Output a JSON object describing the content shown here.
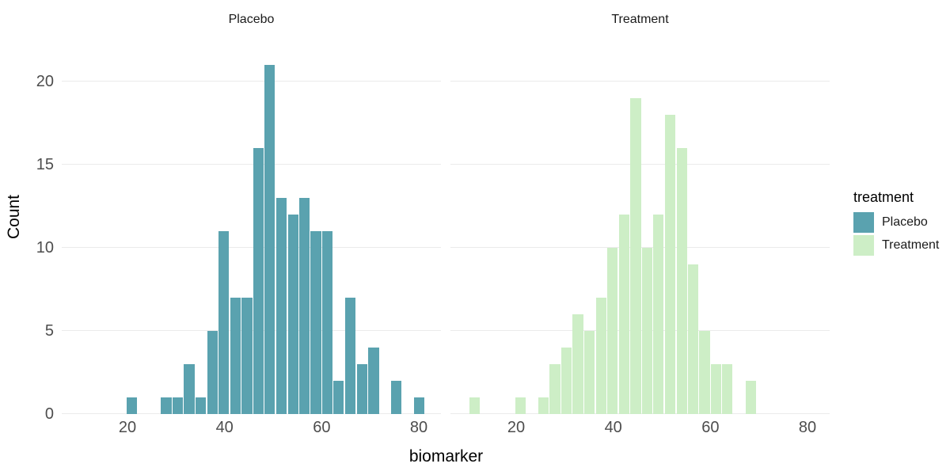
{
  "chart_data": {
    "type": "bar",
    "subtype": "faceted_histogram",
    "title": "",
    "xlabel": "biomarker",
    "ylabel": "Count",
    "x_ticks": [
      20,
      40,
      60,
      80
    ],
    "y_ticks": [
      0,
      5,
      10,
      15,
      20
    ],
    "xlim": [
      6.5,
      84.6
    ],
    "ylim": [
      0,
      22.3
    ],
    "binwidth": 2.37,
    "grid": "horizontal-major-only",
    "legend_position": "right",
    "legend": {
      "title": "treatment",
      "entries": [
        "Placebo",
        "Treatment"
      ]
    },
    "colors": {
      "Placebo": "#5aa2af",
      "Treatment": "#cdeec6"
    },
    "facets": [
      {
        "name": "Placebo",
        "color": "#5aa2af",
        "bins": [
          {
            "x": 20.9,
            "count": 1
          },
          {
            "x": 28.0,
            "count": 1
          },
          {
            "x": 30.4,
            "count": 1
          },
          {
            "x": 32.7,
            "count": 3
          },
          {
            "x": 35.1,
            "count": 1
          },
          {
            "x": 37.5,
            "count": 5
          },
          {
            "x": 39.8,
            "count": 11
          },
          {
            "x": 42.2,
            "count": 7
          },
          {
            "x": 44.6,
            "count": 7
          },
          {
            "x": 47.0,
            "count": 16
          },
          {
            "x": 49.3,
            "count": 21
          },
          {
            "x": 51.7,
            "count": 13
          },
          {
            "x": 54.1,
            "count": 12
          },
          {
            "x": 56.4,
            "count": 13
          },
          {
            "x": 58.8,
            "count": 11
          },
          {
            "x": 61.2,
            "count": 11
          },
          {
            "x": 63.5,
            "count": 2
          },
          {
            "x": 65.9,
            "count": 7
          },
          {
            "x": 68.3,
            "count": 3
          },
          {
            "x": 70.7,
            "count": 4
          },
          {
            "x": 75.4,
            "count": 2
          },
          {
            "x": 80.1,
            "count": 1
          }
        ]
      },
      {
        "name": "Treatment",
        "color": "#cdeec6",
        "bins": [
          {
            "x": 11.4,
            "count": 1
          },
          {
            "x": 20.9,
            "count": 1
          },
          {
            "x": 25.6,
            "count": 1
          },
          {
            "x": 28.0,
            "count": 3
          },
          {
            "x": 30.4,
            "count": 4
          },
          {
            "x": 32.7,
            "count": 6
          },
          {
            "x": 35.1,
            "count": 5
          },
          {
            "x": 37.5,
            "count": 7
          },
          {
            "x": 39.8,
            "count": 10
          },
          {
            "x": 42.2,
            "count": 12
          },
          {
            "x": 44.6,
            "count": 19
          },
          {
            "x": 47.0,
            "count": 10
          },
          {
            "x": 49.3,
            "count": 12
          },
          {
            "x": 51.7,
            "count": 18
          },
          {
            "x": 54.1,
            "count": 16
          },
          {
            "x": 56.4,
            "count": 9
          },
          {
            "x": 58.8,
            "count": 5
          },
          {
            "x": 61.2,
            "count": 3
          },
          {
            "x": 63.5,
            "count": 3
          },
          {
            "x": 68.3,
            "count": 2
          }
        ]
      }
    ]
  },
  "theme": {
    "background": "#ffffff",
    "gridline_color": "#ebebeb",
    "tick_label_color": "#4d4d4d",
    "axis_title_color": "#000000",
    "strip_text_color": "#1a1a1a"
  }
}
